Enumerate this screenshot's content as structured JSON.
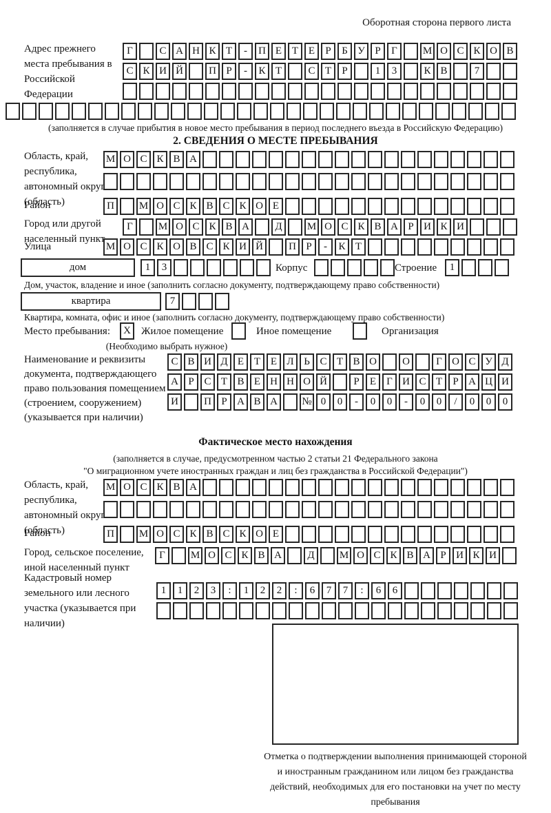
{
  "page": {
    "header_note": "Оборотная сторона первого листа"
  },
  "prev_address": {
    "label": "Адрес прежнего места пребывания в Российской Федерации",
    "row1": {
      "cells": "Г САНКТ-ПЕТЕРБУРГ МОСКОВ",
      "count": 24
    },
    "row2": {
      "cells": "СКИЙ ПР-КТ СТР 13 КВ 7",
      "count": 24
    },
    "row3": {
      "cells": "",
      "count": 24
    },
    "row4": {
      "cells": "",
      "count": 31
    },
    "note": "(заполняется в случае прибытия в новое место пребывания в период последнего въезда в Российскую Федерацию)"
  },
  "section2": {
    "title": "2. СВЕДЕНИЯ О МЕСТЕ ПРЕБЫВАНИЯ",
    "region": {
      "label": "Область, край, республика, автономный округ (область)",
      "row1": {
        "cells": "МОСКВА",
        "count": 25
      },
      "row2": {
        "cells": "",
        "count": 25
      }
    },
    "district": {
      "label": "Район",
      "row": {
        "cells": "П МОСКВСКОЕ",
        "count": 25
      }
    },
    "city": {
      "label": "Город или другой населенный пункт",
      "row": {
        "cells": "Г МОСКВА Д МОСКВАРИКИ",
        "count": 24
      }
    },
    "street": {
      "label": "Улица",
      "row": {
        "cells": "МОСКОВСКИЙ ПР-КТ",
        "count": 25
      }
    },
    "house": {
      "box_label": "дом",
      "row": {
        "cells": "13",
        "count": 8
      },
      "korpus_label": "Корпус",
      "korpus_row": {
        "cells": "",
        "count": 5
      },
      "stroenie_label": "Строение",
      "stroenie_row": {
        "cells": "1",
        "count": 4
      },
      "note": "Дом, участок, владение и иное (заполнить согласно документу, подтверждающему право собственности)"
    },
    "apartment": {
      "box_label": "квартира",
      "row": {
        "cells": "7",
        "count": 4
      },
      "note": "Квартира, комната, офис и иное (заполнить согласно документу, подтверждающему право собственности)"
    },
    "stay_type": {
      "label": "Место пребывания:",
      "options": [
        {
          "label": "Жилое помещение",
          "mark": "X"
        },
        {
          "label": "Иное помещение",
          "mark": ""
        },
        {
          "label": "Организация",
          "mark": ""
        }
      ],
      "note": "(Необходимо выбрать нужное)"
    },
    "document": {
      "label": "Наименование и реквизиты документа, подтверждающего право пользования помещением (строением, сооружением) (указывается при наличии)",
      "row1": {
        "cells": "СВИДЕТЕЛЬСТВО О ГОСУД",
        "count": 21
      },
      "row2": {
        "cells": "АРСТВЕННОЙ РЕГИСТРАЦИ",
        "count": 21
      },
      "row3": {
        "cells": "И ПРАВА №00-00-00/000",
        "count": 21
      }
    }
  },
  "actual_location": {
    "title": "Фактическое место нахождения",
    "note_line1": "(заполняется в случае, предусмотренном частью 2 статьи 21 Федерального закона",
    "note_line2": "\"О миграционном учете иностранных граждан и лиц без гражданства в Российской Федерации\")",
    "region": {
      "label": "Область, край, республика, автономный округ (область)",
      "row1": {
        "cells": "МОСКВА",
        "count": 25
      },
      "row2": {
        "cells": "",
        "count": 25
      }
    },
    "district": {
      "label": "Район",
      "row": {
        "cells": "П МОСКВСКОЕ",
        "count": 25
      }
    },
    "city": {
      "label": "Город, сельское поселение, иной населенный пункт",
      "row": {
        "cells": "Г МОСКВА Д МОСКВАРИКИ",
        "count": 22
      }
    },
    "cadastral": {
      "label": "Кадастровый номер земельного или лесного участка (указывается при наличии)",
      "row1": {
        "cells": "1123:122:677:66",
        "count": 22
      },
      "row2": {
        "cells": "",
        "count": 22
      }
    },
    "stamp_note": "Отметка о подтверждении выполнения принимающей стороной и иностранным гражданином или лицом без гражданства действий, необходимых для его постановки на учет по месту пребывания"
  }
}
